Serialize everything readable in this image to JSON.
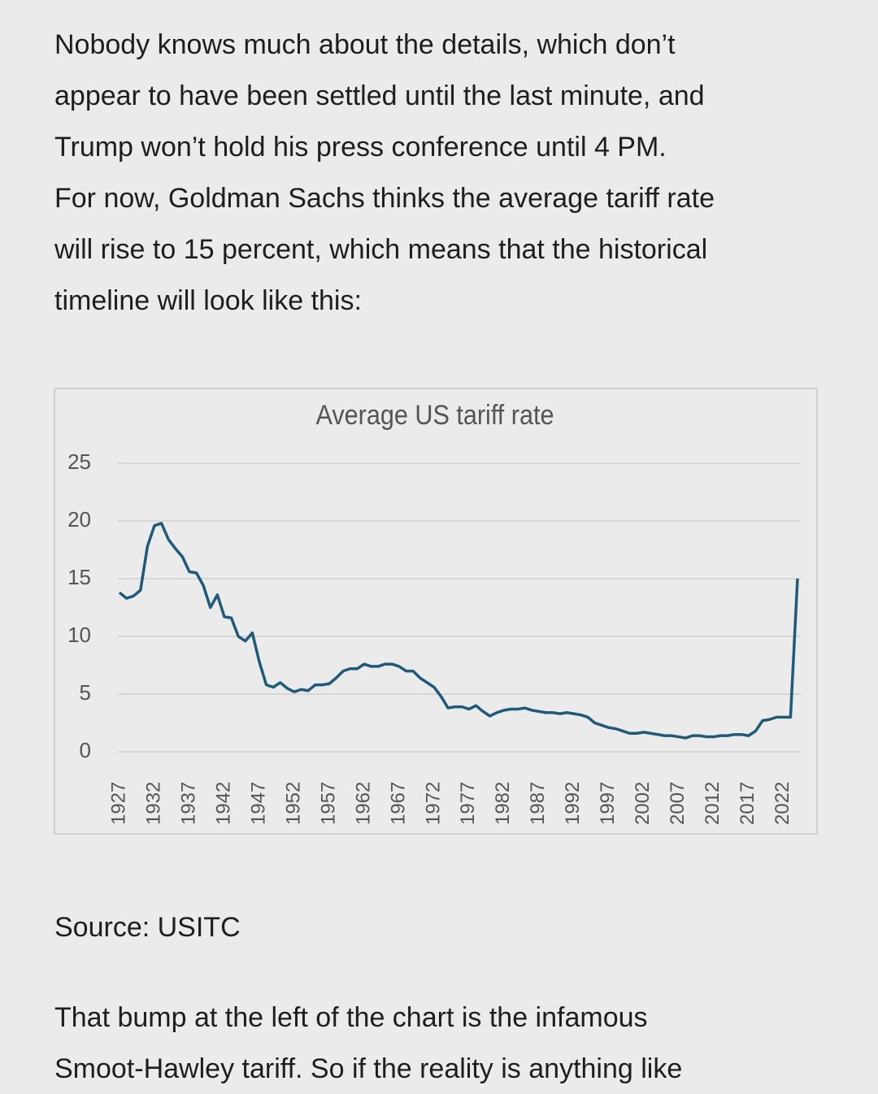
{
  "paragraphs": [
    {
      "lines": [
        "Nobody knows much about the details, which don’t",
        "appear to have been settled until the last minute, and",
        "Trump won’t hold his press conference until 4 PM.",
        "For now, Goldman Sachs thinks the average tariff rate",
        "will rise to 15 percent, which means that the historical",
        "timeline will look like this:"
      ]
    },
    {
      "lines": [
        "Source: USITC"
      ]
    },
    {
      "lines": [
        "That bump at the left of the chart is the infamous",
        "Smoot-Hawley tariff. So if the reality is anything like"
      ]
    }
  ],
  "chart_data": {
    "type": "line",
    "title": "Average US tariff rate",
    "x": [
      1927,
      1928,
      1929,
      1930,
      1931,
      1932,
      1933,
      1934,
      1935,
      1936,
      1937,
      1938,
      1939,
      1940,
      1941,
      1942,
      1943,
      1944,
      1945,
      1946,
      1947,
      1948,
      1949,
      1950,
      1951,
      1952,
      1953,
      1954,
      1955,
      1956,
      1957,
      1958,
      1959,
      1960,
      1961,
      1962,
      1963,
      1964,
      1965,
      1966,
      1967,
      1968,
      1969,
      1970,
      1971,
      1972,
      1973,
      1974,
      1975,
      1976,
      1977,
      1978,
      1979,
      1980,
      1981,
      1982,
      1983,
      1984,
      1985,
      1986,
      1987,
      1988,
      1989,
      1990,
      1991,
      1992,
      1993,
      1994,
      1995,
      1996,
      1997,
      1998,
      1999,
      2000,
      2001,
      2002,
      2003,
      2004,
      2005,
      2006,
      2007,
      2008,
      2009,
      2010,
      2011,
      2012,
      2013,
      2014,
      2015,
      2016,
      2017,
      2018,
      2019,
      2020,
      2021,
      2022,
      2023,
      2024
    ],
    "series": [
      {
        "color": "#1f5a7a",
        "values": [
          13.8,
          13.3,
          13.5,
          14.0,
          17.8,
          19.6,
          19.8,
          18.4,
          17.6,
          16.9,
          15.6,
          15.5,
          14.4,
          12.5,
          13.6,
          11.7,
          11.6,
          10.0,
          9.6,
          10.3,
          7.8,
          5.8,
          5.6,
          6.0,
          5.5,
          5.2,
          5.4,
          5.3,
          5.8,
          5.8,
          5.9,
          6.4,
          7.0,
          7.2,
          7.2,
          7.6,
          7.4,
          7.4,
          7.6,
          7.6,
          7.4,
          7.0,
          7.0,
          6.4,
          6.0,
          5.6,
          4.8,
          3.8,
          3.9,
          3.9,
          3.7,
          4.0,
          3.5,
          3.1,
          3.4,
          3.6,
          3.7,
          3.7,
          3.8,
          3.6,
          3.5,
          3.4,
          3.4,
          3.3,
          3.4,
          3.3,
          3.2,
          3.0,
          2.5,
          2.3,
          2.1,
          2.0,
          1.8,
          1.6,
          1.6,
          1.7,
          1.6,
          1.5,
          1.4,
          1.4,
          1.3,
          1.2,
          1.4,
          1.4,
          1.3,
          1.3,
          1.4,
          1.4,
          1.5,
          1.5,
          1.4,
          1.8,
          2.7,
          2.8,
          3.0,
          3.0,
          3.0,
          15.0
        ]
      }
    ],
    "xlim": [
      1927,
      2024
    ],
    "xticks": [
      1927,
      1932,
      1937,
      1942,
      1947,
      1952,
      1957,
      1962,
      1967,
      1972,
      1977,
      1982,
      1987,
      1992,
      1997,
      2002,
      2007,
      2012,
      2017,
      2022
    ],
    "ylim": [
      0,
      25
    ],
    "yticks": [
      0,
      5,
      10,
      15,
      20,
      25
    ],
    "grid": true
  }
}
